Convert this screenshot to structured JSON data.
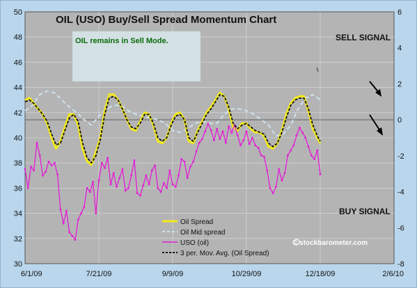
{
  "chart_data": {
    "type": "line",
    "title": "OIL (USO) Buy/Sell Spread Momentum Chart",
    "annotation": "OIL remains in Sell Mode.",
    "sell_label": "SELL SIGNAL",
    "buy_label": "BUY SIGNAL",
    "watermark": "© stockbarometer.com",
    "grid": true,
    "legend_position": "bottom-center",
    "x_ticks": [
      "6/1/09",
      "7/21/09",
      "9/9/09",
      "10/29/09",
      "12/18/09",
      "2/6/10"
    ],
    "y_left": {
      "min": 30,
      "max": 50,
      "ticks": [
        30,
        32,
        34,
        36,
        38,
        40,
        42,
        44,
        46,
        48,
        50
      ]
    },
    "y_right": {
      "min": -8,
      "max": 6,
      "ticks": [
        -8,
        -6,
        -4,
        -2,
        0,
        2,
        4,
        6
      ]
    },
    "series": [
      {
        "name": "Oil Spread",
        "axis": "right",
        "color": "#f2ea1c",
        "style": "solid",
        "points": [
          [
            0,
            1.1
          ],
          [
            3,
            1.2
          ],
          [
            6,
            0.9
          ],
          [
            9,
            0.6
          ],
          [
            12,
            0.3
          ],
          [
            15,
            -0.2
          ],
          [
            18,
            -1.0
          ],
          [
            21,
            -1.6
          ],
          [
            24,
            -1.2
          ],
          [
            27,
            -0.4
          ],
          [
            30,
            0.3
          ],
          [
            33,
            0.3
          ],
          [
            36,
            -0.3
          ],
          [
            39,
            -1.6
          ],
          [
            42,
            -2.3
          ],
          [
            45,
            -2.5
          ],
          [
            48,
            -1.8
          ],
          [
            51,
            -1.0
          ],
          [
            54,
            0.5
          ],
          [
            57,
            1.4
          ],
          [
            60,
            1.4
          ],
          [
            63,
            1.1
          ],
          [
            66,
            0.6
          ],
          [
            69,
            0.0
          ],
          [
            72,
            -0.5
          ],
          [
            75,
            -0.6
          ],
          [
            78,
            -0.1
          ],
          [
            81,
            0.4
          ],
          [
            84,
            0.3
          ],
          [
            87,
            -0.3
          ],
          [
            90,
            -1.2
          ],
          [
            93,
            -1.3
          ],
          [
            96,
            -1.0
          ],
          [
            99,
            -0.2
          ],
          [
            102,
            0.3
          ],
          [
            105,
            0.4
          ],
          [
            108,
            0.0
          ],
          [
            111,
            -1.2
          ],
          [
            114,
            -1.3
          ],
          [
            117,
            -0.6
          ],
          [
            120,
            -0.1
          ],
          [
            123,
            0.4
          ],
          [
            126,
            0.7
          ],
          [
            129,
            1.1
          ],
          [
            132,
            1.5
          ],
          [
            135,
            1.3
          ],
          [
            138,
            0.6
          ],
          [
            141,
            -0.4
          ],
          [
            144,
            -0.6
          ],
          [
            147,
            -0.2
          ],
          [
            150,
            -0.2
          ],
          [
            153,
            -0.5
          ],
          [
            156,
            -0.7
          ],
          [
            159,
            -0.7
          ],
          [
            162,
            -0.9
          ],
          [
            165,
            -1.5
          ],
          [
            168,
            -1.6
          ],
          [
            171,
            -1.3
          ],
          [
            174,
            -0.6
          ],
          [
            177,
            0.3
          ],
          [
            180,
            0.9
          ],
          [
            183,
            1.2
          ],
          [
            186,
            1.3
          ],
          [
            189,
            1.3
          ],
          [
            192,
            0.5
          ],
          [
            195,
            -0.5
          ],
          [
            198,
            -1.0
          ],
          [
            200,
            -1.3
          ]
        ]
      },
      {
        "name": "Oil Mid spread",
        "axis": "right",
        "color": "#cfe3ee",
        "style": "dashed",
        "points": [
          [
            0,
            0.5
          ],
          [
            5,
            0.8
          ],
          [
            10,
            1.4
          ],
          [
            15,
            1.6
          ],
          [
            20,
            1.5
          ],
          [
            25,
            1.1
          ],
          [
            30,
            0.7
          ],
          [
            35,
            0.4
          ],
          [
            40,
            0.0
          ],
          [
            45,
            -0.3
          ],
          [
            50,
            0.2
          ],
          [
            55,
            0.6
          ],
          [
            60,
            0.8
          ],
          [
            65,
            0.8
          ],
          [
            70,
            0.5
          ],
          [
            75,
            0.3
          ],
          [
            80,
            0.2
          ],
          [
            85,
            0.1
          ],
          [
            90,
            0.0
          ],
          [
            95,
            -0.2
          ],
          [
            100,
            -0.6
          ],
          [
            105,
            -0.7
          ],
          [
            110,
            -0.5
          ],
          [
            115,
            -0.2
          ],
          [
            120,
            -0.1
          ],
          [
            125,
            -0.2
          ],
          [
            130,
            -0.2
          ],
          [
            135,
            0.3
          ],
          [
            140,
            0.6
          ],
          [
            145,
            0.6
          ],
          [
            150,
            0.5
          ],
          [
            155,
            0.3
          ],
          [
            160,
            0.0
          ],
          [
            165,
            -0.3
          ],
          [
            170,
            -0.9
          ],
          [
            175,
            -0.8
          ],
          [
            180,
            -0.3
          ],
          [
            185,
            0.6
          ],
          [
            190,
            1.2
          ],
          [
            195,
            1.4
          ],
          [
            200,
            1.1
          ]
        ]
      },
      {
        "name": "USO (oil)",
        "axis": "left",
        "color": "#e41bd6",
        "style": "solid",
        "points": [
          [
            0,
            37.5
          ],
          [
            2,
            36.0
          ],
          [
            4,
            37.7
          ],
          [
            6,
            37.4
          ],
          [
            8,
            39.6
          ],
          [
            10,
            38.6
          ],
          [
            12,
            37.0
          ],
          [
            14,
            37.3
          ],
          [
            16,
            38.1
          ],
          [
            18,
            37.8
          ],
          [
            20,
            38.0
          ],
          [
            22,
            37.1
          ],
          [
            24,
            34.3
          ],
          [
            26,
            33.2
          ],
          [
            28,
            34.2
          ],
          [
            30,
            32.5
          ],
          [
            32,
            32.2
          ],
          [
            34,
            31.9
          ],
          [
            36,
            33.5
          ],
          [
            38,
            34.0
          ],
          [
            40,
            34.5
          ],
          [
            42,
            36.0
          ],
          [
            44,
            35.7
          ],
          [
            46,
            36.5
          ],
          [
            48,
            34.0
          ],
          [
            50,
            36.6
          ],
          [
            52,
            38.0
          ],
          [
            54,
            37.6
          ],
          [
            56,
            38.4
          ],
          [
            58,
            36.3
          ],
          [
            60,
            37.2
          ],
          [
            62,
            36.1
          ],
          [
            64,
            36.8
          ],
          [
            66,
            37.5
          ],
          [
            68,
            35.8
          ],
          [
            70,
            36.0
          ],
          [
            72,
            37.0
          ],
          [
            74,
            38.2
          ],
          [
            76,
            35.6
          ],
          [
            78,
            35.4
          ],
          [
            80,
            36.2
          ],
          [
            82,
            37.0
          ],
          [
            84,
            36.3
          ],
          [
            86,
            37.4
          ],
          [
            88,
            37.8
          ],
          [
            90,
            36.0
          ],
          [
            92,
            35.7
          ],
          [
            94,
            36.4
          ],
          [
            96,
            36.0
          ],
          [
            98,
            37.4
          ],
          [
            100,
            36.3
          ],
          [
            102,
            36.1
          ],
          [
            104,
            37.0
          ],
          [
            106,
            38.3
          ],
          [
            108,
            38.1
          ],
          [
            110,
            36.8
          ],
          [
            112,
            37.7
          ],
          [
            114,
            38.1
          ],
          [
            116,
            38.9
          ],
          [
            118,
            39.6
          ],
          [
            120,
            39.9
          ],
          [
            122,
            40.5
          ],
          [
            124,
            41.1
          ],
          [
            126,
            40.6
          ],
          [
            128,
            39.8
          ],
          [
            130,
            40.7
          ],
          [
            132,
            39.9
          ],
          [
            134,
            40.5
          ],
          [
            136,
            39.6
          ],
          [
            138,
            40.9
          ],
          [
            140,
            40.4
          ],
          [
            142,
            41.0
          ],
          [
            144,
            40.2
          ],
          [
            146,
            39.4
          ],
          [
            148,
            39.8
          ],
          [
            150,
            40.5
          ],
          [
            152,
            39.5
          ],
          [
            154,
            40.0
          ],
          [
            156,
            39.4
          ],
          [
            158,
            39.2
          ],
          [
            160,
            38.6
          ],
          [
            162,
            38.5
          ],
          [
            164,
            37.4
          ],
          [
            166,
            36.0
          ],
          [
            168,
            35.6
          ],
          [
            170,
            36.1
          ],
          [
            172,
            37.5
          ],
          [
            174,
            36.6
          ],
          [
            176,
            37.2
          ],
          [
            178,
            38.6
          ],
          [
            180,
            39.0
          ],
          [
            182,
            39.4
          ],
          [
            184,
            40.2
          ],
          [
            186,
            40.8
          ],
          [
            188,
            40.4
          ],
          [
            190,
            40.0
          ],
          [
            192,
            39.3
          ],
          [
            194,
            38.6
          ],
          [
            196,
            38.3
          ],
          [
            198,
            39.0
          ],
          [
            200,
            37.1
          ]
        ]
      },
      {
        "name": "3 per. Mov. Avg. (Oil Spread)",
        "axis": "right",
        "color": "#111111",
        "style": "dashed",
        "points": [
          [
            0,
            1.0
          ],
          [
            3,
            1.1
          ],
          [
            6,
            0.9
          ],
          [
            9,
            0.6
          ],
          [
            12,
            0.3
          ],
          [
            15,
            -0.1
          ],
          [
            18,
            -0.8
          ],
          [
            21,
            -1.4
          ],
          [
            24,
            -1.3
          ],
          [
            27,
            -0.6
          ],
          [
            30,
            0.1
          ],
          [
            33,
            0.3
          ],
          [
            36,
            -0.1
          ],
          [
            39,
            -1.3
          ],
          [
            42,
            -2.1
          ],
          [
            45,
            -2.4
          ],
          [
            48,
            -2.0
          ],
          [
            51,
            -1.1
          ],
          [
            54,
            0.3
          ],
          [
            57,
            1.2
          ],
          [
            60,
            1.3
          ],
          [
            63,
            1.1
          ],
          [
            66,
            0.6
          ],
          [
            69,
            0.0
          ],
          [
            72,
            -0.4
          ],
          [
            75,
            -0.5
          ],
          [
            78,
            -0.2
          ],
          [
            81,
            0.3
          ],
          [
            84,
            0.3
          ],
          [
            87,
            -0.2
          ],
          [
            90,
            -1.0
          ],
          [
            93,
            -1.2
          ],
          [
            96,
            -1.0
          ],
          [
            99,
            -0.3
          ],
          [
            102,
            0.2
          ],
          [
            105,
            0.3
          ],
          [
            108,
            0.0
          ],
          [
            111,
            -1.0
          ],
          [
            114,
            -1.2
          ],
          [
            117,
            -0.7
          ],
          [
            120,
            -0.2
          ],
          [
            123,
            0.3
          ],
          [
            126,
            0.6
          ],
          [
            129,
            1.0
          ],
          [
            132,
            1.4
          ],
          [
            135,
            1.3
          ],
          [
            138,
            0.7
          ],
          [
            141,
            -0.2
          ],
          [
            144,
            -0.5
          ],
          [
            147,
            -0.3
          ],
          [
            150,
            -0.2
          ],
          [
            153,
            -0.4
          ],
          [
            156,
            -0.6
          ],
          [
            159,
            -0.7
          ],
          [
            162,
            -0.8
          ],
          [
            165,
            -1.3
          ],
          [
            168,
            -1.5
          ],
          [
            171,
            -1.3
          ],
          [
            174,
            -0.7
          ],
          [
            177,
            0.1
          ],
          [
            180,
            0.8
          ],
          [
            183,
            1.1
          ],
          [
            186,
            1.2
          ],
          [
            189,
            1.2
          ],
          [
            192,
            0.6
          ],
          [
            195,
            -0.3
          ],
          [
            198,
            -0.9
          ],
          [
            200,
            -1.2
          ]
        ]
      }
    ]
  }
}
